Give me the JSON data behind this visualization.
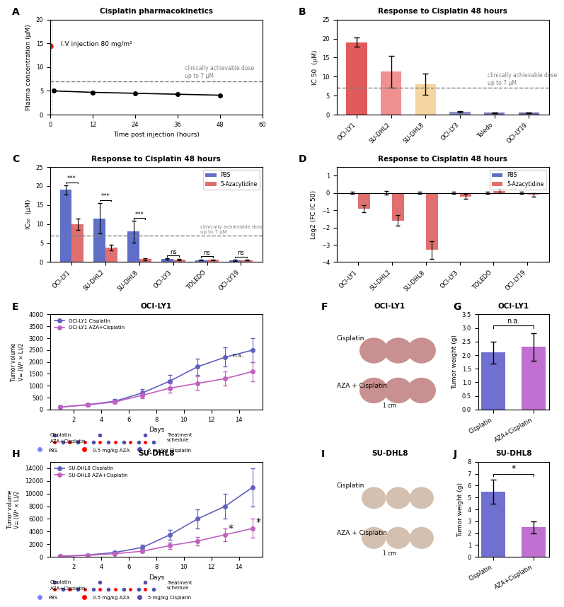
{
  "panel_A": {
    "title": "Cisplatin pharmacokinetics",
    "xlabel": "Time post injection (hours)",
    "ylabel": "Plasma concentration (μM)",
    "annotation": "I.V injection 80 mg/m²",
    "dotted_line_y": 7,
    "dotted_label": "clinically achievable dose\nup to 7 μM",
    "time_black": [
      1,
      12,
      24,
      36,
      48
    ],
    "conc_black": [
      5.0,
      4.7,
      4.5,
      4.3,
      4.1
    ],
    "time_red": [
      0
    ],
    "conc_red": [
      14.5
    ],
    "ylim": [
      0,
      20
    ],
    "xlim": [
      0,
      60
    ]
  },
  "panel_B": {
    "title": "Response to Cisplatin 48 hours",
    "ylabel": "IC 50  (μM)",
    "categories": [
      "OCI-LY1",
      "SU-DHL2",
      "SU-DHL8",
      "OCI-LY3",
      "Toledo",
      "OCI-LY19"
    ],
    "values": [
      19.0,
      11.3,
      8.0,
      0.8,
      0.5,
      0.5
    ],
    "errors": [
      1.2,
      4.2,
      2.8,
      0.15,
      0.1,
      0.15
    ],
    "colors": [
      "#e05c5c",
      "#f09090",
      "#f5d5a0",
      "#9090c8",
      "#8080b8",
      "#7070a8"
    ],
    "dotted_line_y": 7,
    "dotted_label": "clinically achievable dose\nup to 7 μM",
    "ylim": [
      0,
      25
    ]
  },
  "panel_C": {
    "title": "Response to Cisplatin 48 hours",
    "ylabel": "IC₅₀  (μM)",
    "categories": [
      "OCI-LY1",
      "SU-DHL2",
      "SU-DHL8",
      "OCI-LY3",
      "TOLEDO",
      "OCI-LY19"
    ],
    "pbs_values": [
      19.0,
      11.5,
      8.0,
      0.8,
      0.5,
      0.5
    ],
    "pbs_errors": [
      1.2,
      4.0,
      2.8,
      0.15,
      0.1,
      0.15
    ],
    "aza_values": [
      10.0,
      3.8,
      0.8,
      0.7,
      0.6,
      0.5
    ],
    "aza_errors": [
      1.5,
      0.8,
      0.3,
      0.15,
      0.12,
      0.1
    ],
    "dotted_line_y": 7,
    "dotted_label": "clinically achievable dose\nup to 7 μM",
    "ylim": [
      0,
      25
    ],
    "sig_labels": [
      "***",
      "***",
      "***",
      "ns",
      "ns",
      "ns"
    ],
    "pbs_color": "#6070c8",
    "aza_color": "#e07070"
  },
  "panel_D": {
    "title": "Response to Cisplatin 48 hours",
    "ylabel": "Log2 (FC IC 50)",
    "categories": [
      "OCI-LY1",
      "SU-DHL2",
      "SU-DHL8",
      "OCI-LY3",
      "TOLEDO",
      "OCI-LY19"
    ],
    "pbs_values": [
      0.0,
      0.0,
      0.0,
      0.0,
      0.0,
      0.0
    ],
    "aza_values": [
      -0.9,
      -1.6,
      -3.3,
      -0.2,
      0.1,
      -0.1
    ],
    "aza_errors": [
      0.2,
      0.3,
      0.5,
      0.15,
      0.12,
      0.1
    ],
    "pbs_errors": [
      0.05,
      0.1,
      0.05,
      0.05,
      0.05,
      0.05
    ],
    "ylim": [
      -4,
      1.5
    ],
    "pbs_color": "#6070c8",
    "aza_color": "#e07070"
  },
  "panel_E": {
    "title": "OCI-LY1",
    "xlabel": "Days",
    "ylabel": "Tumor volume\nV= (W² × L)/2",
    "days": [
      1,
      3,
      5,
      7,
      9,
      11,
      13,
      15
    ],
    "cisplatin_values": [
      100,
      200,
      350,
      700,
      1200,
      1800,
      2200,
      2500
    ],
    "cisplatin_errors": [
      20,
      50,
      80,
      150,
      250,
      350,
      400,
      500
    ],
    "aza_values": [
      100,
      190,
      320,
      600,
      900,
      1100,
      1300,
      1600
    ],
    "aza_errors": [
      15,
      40,
      60,
      120,
      200,
      280,
      300,
      400
    ],
    "ylim": [
      0,
      4000
    ],
    "annotation": "n.s.",
    "cis_color": "#6060c0",
    "aza_color": "#c060c0",
    "schedule_pbs_days": [
      1,
      3,
      5,
      7,
      9,
      11,
      13
    ],
    "schedule_cis_days": [
      1,
      7,
      13
    ],
    "schedule_aza_days": [
      1,
      3,
      5,
      7,
      9,
      11,
      13
    ]
  },
  "panel_H": {
    "title": "SU-DHL8",
    "xlabel": "Days",
    "ylabel": "Tumor volume\nV= (W² × L)/2",
    "days": [
      1,
      3,
      5,
      7,
      9,
      11,
      13,
      15
    ],
    "cisplatin_values": [
      100,
      300,
      700,
      1500,
      3500,
      6000,
      8000,
      11000
    ],
    "cisplatin_errors": [
      30,
      80,
      200,
      400,
      800,
      1500,
      2000,
      3000
    ],
    "aza_values": [
      100,
      250,
      500,
      900,
      1800,
      2500,
      3500,
      4500
    ],
    "aza_errors": [
      20,
      60,
      150,
      250,
      500,
      700,
      1000,
      1500
    ],
    "ylim": [
      0,
      15000
    ],
    "sig_days": [
      13,
      15
    ],
    "cis_color": "#6060c0",
    "aza_color": "#c060c0"
  },
  "panel_G": {
    "title": "OCI-LY1",
    "ylabel": "Tumor weight (g)",
    "categories": [
      "Cisplatin",
      "AZA+Cisplatin"
    ],
    "values": [
      2.1,
      2.3
    ],
    "errors": [
      0.4,
      0.5
    ],
    "colors": [
      "#7070d0",
      "#c070d0"
    ],
    "annotation": "n.a.",
    "ylim": [
      0,
      3.5
    ]
  },
  "panel_J": {
    "title": "SU-DHL8",
    "ylabel": "Tumor weight (g)",
    "categories": [
      "Cisplatin",
      "AZA+Cisplatin"
    ],
    "values": [
      5.5,
      2.5
    ],
    "errors": [
      1.0,
      0.5
    ],
    "colors": [
      "#7070d0",
      "#c070d0"
    ],
    "annotation": "*",
    "ylim": [
      0,
      8
    ]
  }
}
